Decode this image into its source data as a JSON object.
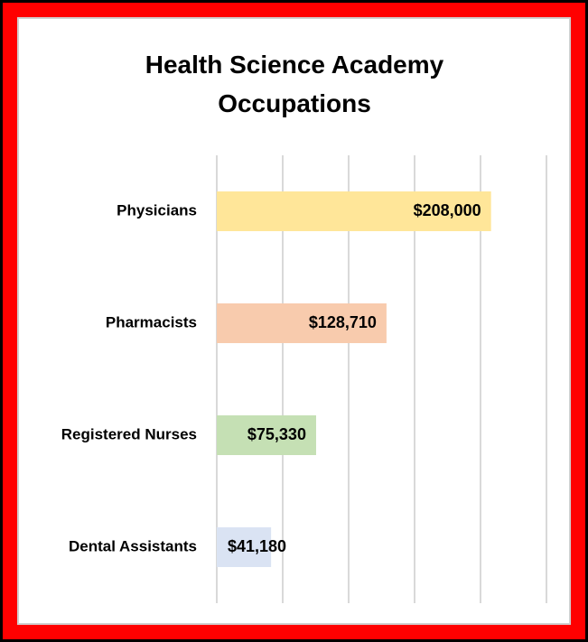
{
  "chart_data": {
    "type": "bar",
    "orientation": "horizontal",
    "title": "Health Science Academy Occupations",
    "categories": [
      "Physicians",
      "Pharmacists",
      "Registered Nurses",
      "Dental Assistants"
    ],
    "values": [
      208000,
      128710,
      75330,
      41180
    ],
    "value_labels": [
      "$208,000",
      "$128,710",
      "$75,330",
      "$41,180"
    ],
    "colors": [
      "#ffe699",
      "#f8cbad",
      "#c5e0b4",
      "#dae3f3"
    ],
    "xlim": [
      0,
      250000
    ],
    "xticks": [
      0,
      50000,
      100000,
      150000,
      200000,
      250000
    ],
    "grid": true
  }
}
